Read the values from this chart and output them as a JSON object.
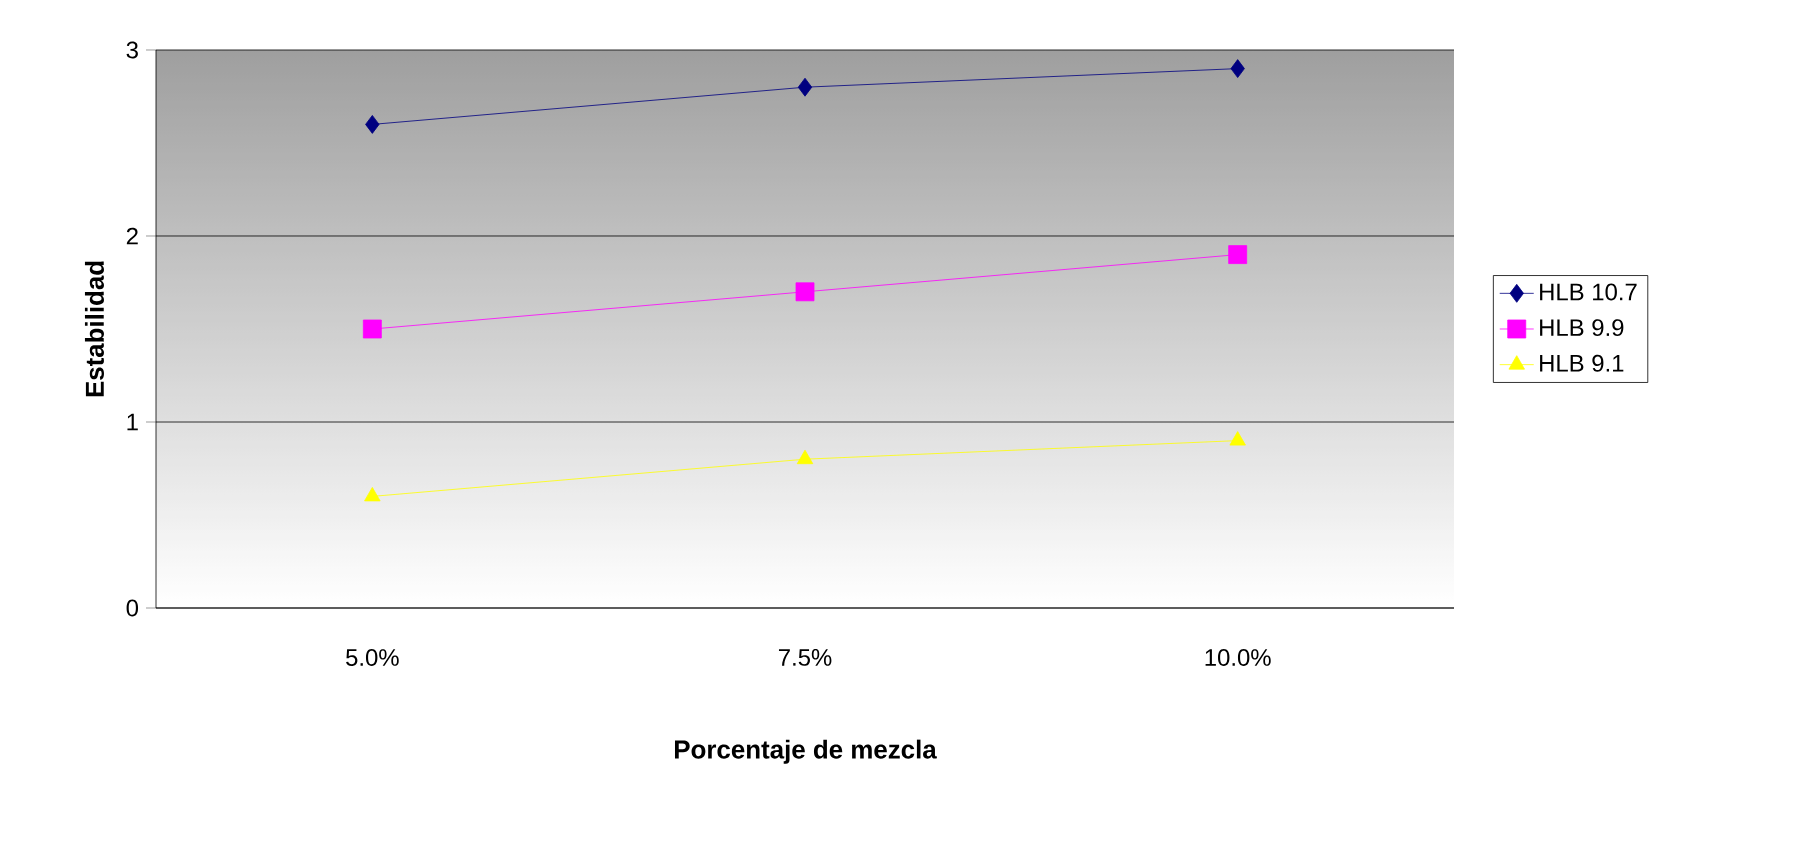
{
  "chart_data": {
    "type": "line",
    "xlabel": "Porcentaje de mezcla",
    "ylabel": "Estabilidad",
    "categories": [
      "5.0%",
      "7.5%",
      "10.0%"
    ],
    "series": [
      {
        "name": "HLB 10.7",
        "color": "#000080",
        "marker": "diamond",
        "values": [
          2.6,
          2.8,
          2.9
        ]
      },
      {
        "name": "HLB 9.9",
        "color": "#ff00ff",
        "marker": "square",
        "values": [
          1.5,
          1.7,
          1.9
        ]
      },
      {
        "name": "HLB 9.1",
        "color": "#ffff00",
        "marker": "triangle",
        "values": [
          0.6,
          0.8,
          0.9
        ]
      }
    ],
    "ylim": [
      0,
      3
    ],
    "yticks": [
      0,
      1,
      2,
      3
    ],
    "grid": "y",
    "legend": "right"
  }
}
